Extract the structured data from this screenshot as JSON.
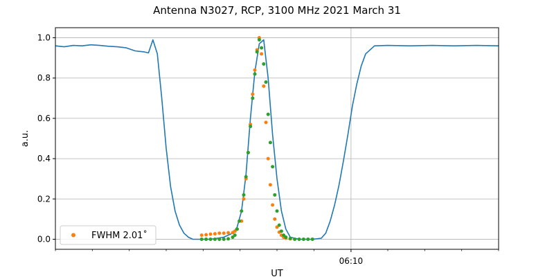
{
  "chart_data": {
    "type": "line",
    "title": "Antenna N3027, RCP, 3100 MHz 2021 March 31",
    "xlabel": "UT",
    "ylabel": "a.u.",
    "xlim": [
      0,
      1
    ],
    "ylim": [
      -0.05,
      1.05
    ],
    "yticks": [
      0.0,
      0.2,
      0.4,
      0.6,
      0.8,
      1.0
    ],
    "ytick_labels": [
      "0.0",
      "0.2",
      "0.4",
      "0.6",
      "0.8",
      "1.0"
    ],
    "xtick_major": [
      {
        "x": 0.667,
        "label": "06:10"
      }
    ],
    "xtick_minor": [
      0.0,
      0.0833,
      0.1667,
      0.25,
      0.3333,
      0.4167,
      0.5,
      0.5833,
      0.75,
      0.8333,
      0.9167,
      1.0
    ],
    "grid": true,
    "legend": {
      "placement": "lower-left",
      "entries": [
        {
          "label": "FWHM 2.01$^\\circ$",
          "display": "FWHM 2.01˚",
          "color": "#ff7f0e"
        }
      ]
    },
    "series": [
      {
        "kind": "line",
        "color": "#1f77b4",
        "x": [
          0.0,
          0.02,
          0.04,
          0.06,
          0.08,
          0.1,
          0.12,
          0.14,
          0.16,
          0.18,
          0.2,
          0.21,
          0.22,
          0.23,
          0.24,
          0.25,
          0.26,
          0.27,
          0.28,
          0.29,
          0.3,
          0.31,
          0.33,
          0.35,
          0.38,
          0.4,
          0.41,
          0.42,
          0.43,
          0.44,
          0.45,
          0.46,
          0.47,
          0.48,
          0.49,
          0.5,
          0.51,
          0.52,
          0.53,
          0.55,
          0.58,
          0.6,
          0.61,
          0.62,
          0.63,
          0.64,
          0.65,
          0.66,
          0.67,
          0.68,
          0.69,
          0.7,
          0.72,
          0.75,
          0.8,
          0.85,
          0.9,
          0.95,
          1.0
        ],
        "y": [
          0.96,
          0.955,
          0.962,
          0.96,
          0.965,
          0.962,
          0.958,
          0.955,
          0.95,
          0.935,
          0.93,
          0.925,
          0.99,
          0.92,
          0.7,
          0.45,
          0.26,
          0.14,
          0.07,
          0.03,
          0.01,
          0.0,
          0.0,
          0.0,
          0.01,
          0.03,
          0.06,
          0.14,
          0.32,
          0.6,
          0.83,
          0.97,
          0.99,
          0.8,
          0.52,
          0.3,
          0.14,
          0.05,
          0.01,
          0.0,
          0.0,
          0.005,
          0.03,
          0.09,
          0.17,
          0.27,
          0.39,
          0.52,
          0.66,
          0.77,
          0.86,
          0.92,
          0.96,
          0.962,
          0.96,
          0.962,
          0.96,
          0.962,
          0.96
        ]
      },
      {
        "kind": "scatter",
        "color": "#ff7f0e",
        "label": "FWHM 2.01˚",
        "x": [
          0.33,
          0.34,
          0.35,
          0.36,
          0.37,
          0.38,
          0.39,
          0.4,
          0.405,
          0.41,
          0.42,
          0.425,
          0.43,
          0.435,
          0.44,
          0.445,
          0.45,
          0.455,
          0.46,
          0.465,
          0.47,
          0.475,
          0.48,
          0.485,
          0.49,
          0.495,
          0.5,
          0.505,
          0.51,
          0.515,
          0.52,
          0.53
        ],
        "y": [
          0.02,
          0.022,
          0.025,
          0.027,
          0.03,
          0.03,
          0.032,
          0.033,
          0.04,
          0.05,
          0.09,
          0.2,
          0.3,
          0.43,
          0.57,
          0.72,
          0.84,
          0.94,
          1.0,
          0.92,
          0.76,
          0.58,
          0.4,
          0.27,
          0.17,
          0.1,
          0.06,
          0.035,
          0.02,
          0.01,
          0.005,
          0.002
        ]
      },
      {
        "kind": "scatter",
        "color": "#2ca02c",
        "x": [
          0.33,
          0.34,
          0.35,
          0.36,
          0.37,
          0.38,
          0.39,
          0.4,
          0.405,
          0.41,
          0.415,
          0.42,
          0.425,
          0.43,
          0.435,
          0.44,
          0.445,
          0.45,
          0.455,
          0.46,
          0.465,
          0.47,
          0.475,
          0.48,
          0.485,
          0.49,
          0.495,
          0.5,
          0.505,
          0.51,
          0.515,
          0.52,
          0.53,
          0.54,
          0.55,
          0.56,
          0.57,
          0.58
        ],
        "y": [
          0.0,
          0.0,
          0.0,
          0.0,
          0.0,
          0.0,
          0.002,
          0.01,
          0.02,
          0.05,
          0.09,
          0.14,
          0.22,
          0.31,
          0.43,
          0.56,
          0.7,
          0.82,
          0.93,
          0.99,
          0.95,
          0.87,
          0.78,
          0.62,
          0.48,
          0.36,
          0.22,
          0.14,
          0.07,
          0.04,
          0.02,
          0.01,
          0.004,
          0.0,
          0.0,
          0.0,
          0.0,
          0.0
        ]
      }
    ]
  }
}
